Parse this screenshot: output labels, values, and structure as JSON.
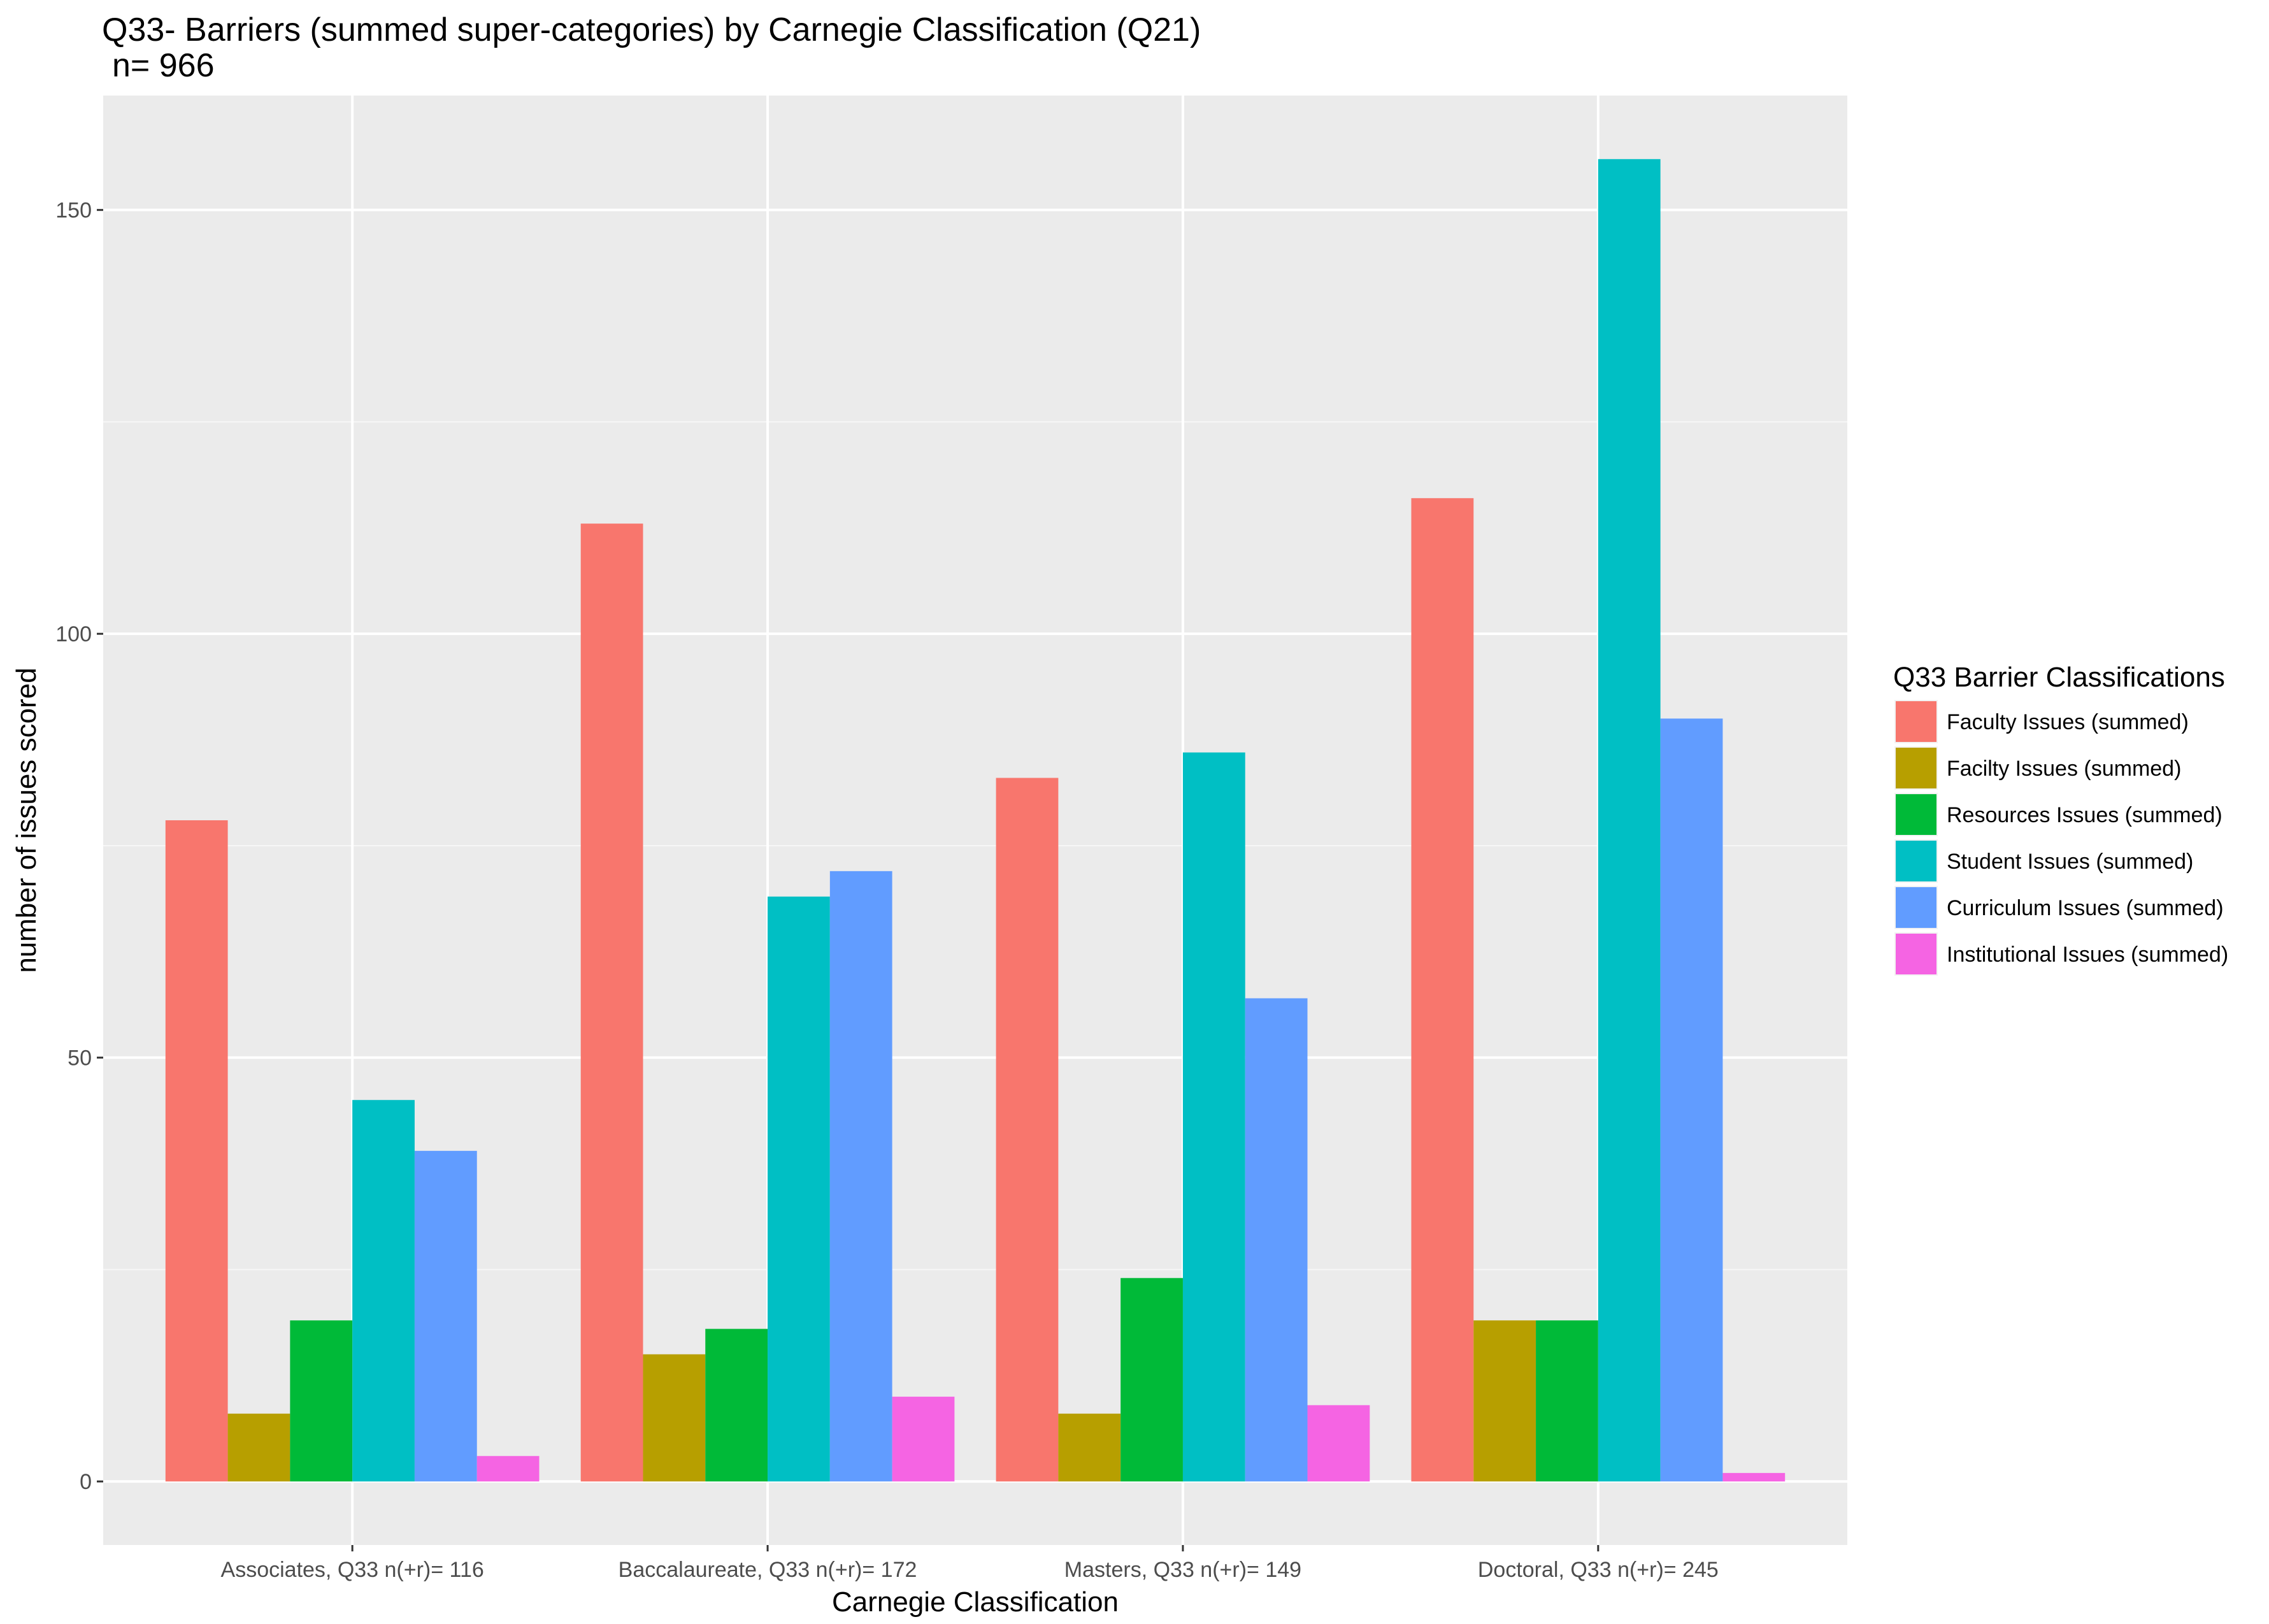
{
  "chart_data": {
    "type": "bar",
    "title": "Q33- Barriers (summed super-categories) by Carnegie Classification (Q21)",
    "subtitle": "n= 966",
    "xlabel": "Carnegie Classification",
    "ylabel": "number of issues scored",
    "categories": [
      "Associates, Q33 n(+r)= 116",
      "Baccalaureate, Q33 n(+r)= 172",
      "Masters, Q33 n(+r)= 149",
      "Doctoral, Q33 n(+r)= 245"
    ],
    "series": [
      {
        "name": "Faculty Issues (summed)",
        "color": "#F8766D",
        "values": [
          78,
          113,
          83,
          116
        ]
      },
      {
        "name": "Facilty Issues (summed)",
        "color": "#B79F00",
        "values": [
          8,
          15,
          8,
          19
        ]
      },
      {
        "name": "Resources Issues (summed)",
        "color": "#00BA38",
        "values": [
          19,
          18,
          24,
          19
        ]
      },
      {
        "name": "Student Issues (summed)",
        "color": "#00BFC4",
        "values": [
          45,
          69,
          86,
          156
        ]
      },
      {
        "name": "Curriculum Issues (summed)",
        "color": "#619CFF",
        "values": [
          39,
          72,
          57,
          90
        ]
      },
      {
        "name": "Institutional Issues (summed)",
        "color": "#F564E3",
        "values": [
          3,
          10,
          9,
          1
        ]
      }
    ],
    "ylim": [
      -7.5,
      163.5
    ],
    "yticks": [
      0,
      50,
      100,
      150
    ],
    "grid": true,
    "legend": {
      "title": "Q33 Barrier Classifications",
      "position": "right"
    }
  }
}
